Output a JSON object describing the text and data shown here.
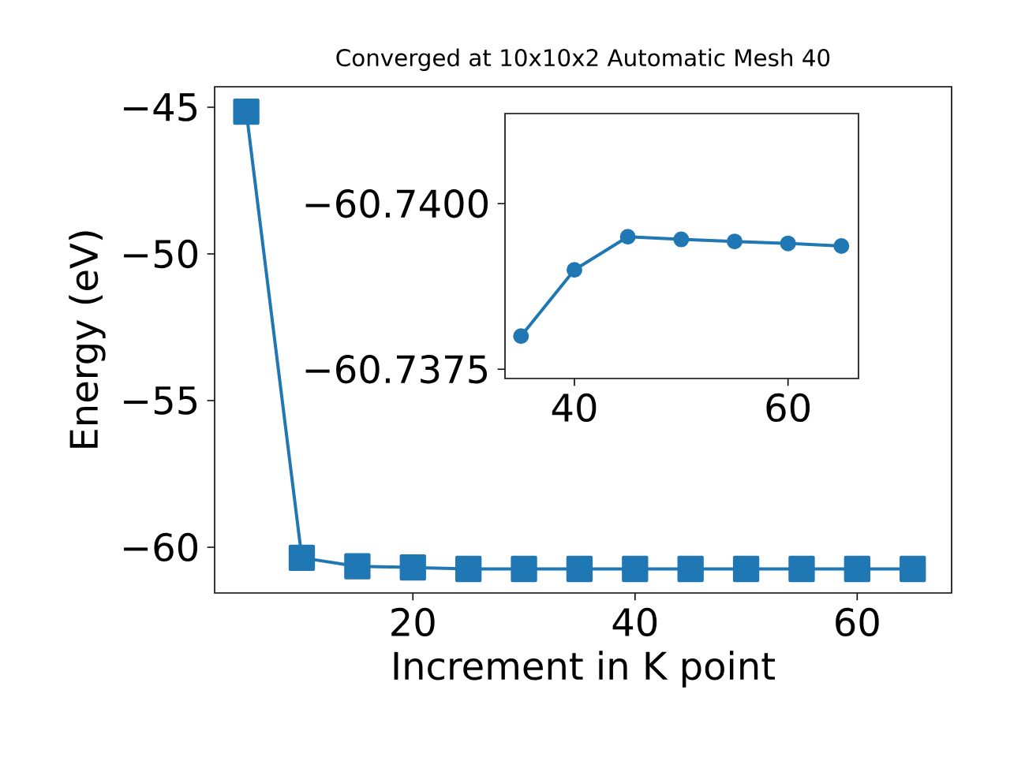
{
  "chart_data": [
    {
      "type": "line",
      "title": "Converged at 10x10x2 Automatic Mesh 40",
      "xlabel": "Increment in K point",
      "ylabel": "Energy (eV)",
      "color": "#1f77b4",
      "marker": "square",
      "x": [
        5,
        10,
        15,
        20,
        25,
        30,
        35,
        40,
        45,
        50,
        55,
        60,
        65
      ],
      "values": [
        -45.15,
        -60.36,
        -60.65,
        -60.69,
        -60.74,
        -60.74,
        -60.74,
        -60.74,
        -60.74,
        -60.74,
        -60.74,
        -60.74,
        -60.74
      ],
      "xlim": [
        2.15,
        68.5
      ],
      "ylim": [
        -61.56,
        -44.3
      ],
      "xticks": [
        20,
        40,
        60
      ],
      "yticks": [
        {
          "value": -45,
          "label": "−45"
        },
        {
          "value": -50,
          "label": "−50"
        },
        {
          "value": -55,
          "label": "−55"
        },
        {
          "value": -60,
          "label": "−60"
        }
      ]
    },
    {
      "type": "line",
      "color": "#1f77b4",
      "marker": "circle",
      "x": [
        35,
        40,
        45,
        50,
        55,
        60,
        65
      ],
      "values": [
        -60.738,
        -60.739,
        -60.7395,
        -60.73946,
        -60.73943,
        -60.7394,
        -60.73936
      ],
      "xlim": [
        33.5,
        66.6
      ],
      "ylim": [
        -60.73736,
        -60.74136
      ],
      "xticks": [
        40,
        60
      ],
      "yticks": [
        {
          "value": -60.74,
          "label": "−60.7400"
        },
        {
          "value": -60.7375,
          "label": "−60.7375"
        }
      ]
    }
  ]
}
